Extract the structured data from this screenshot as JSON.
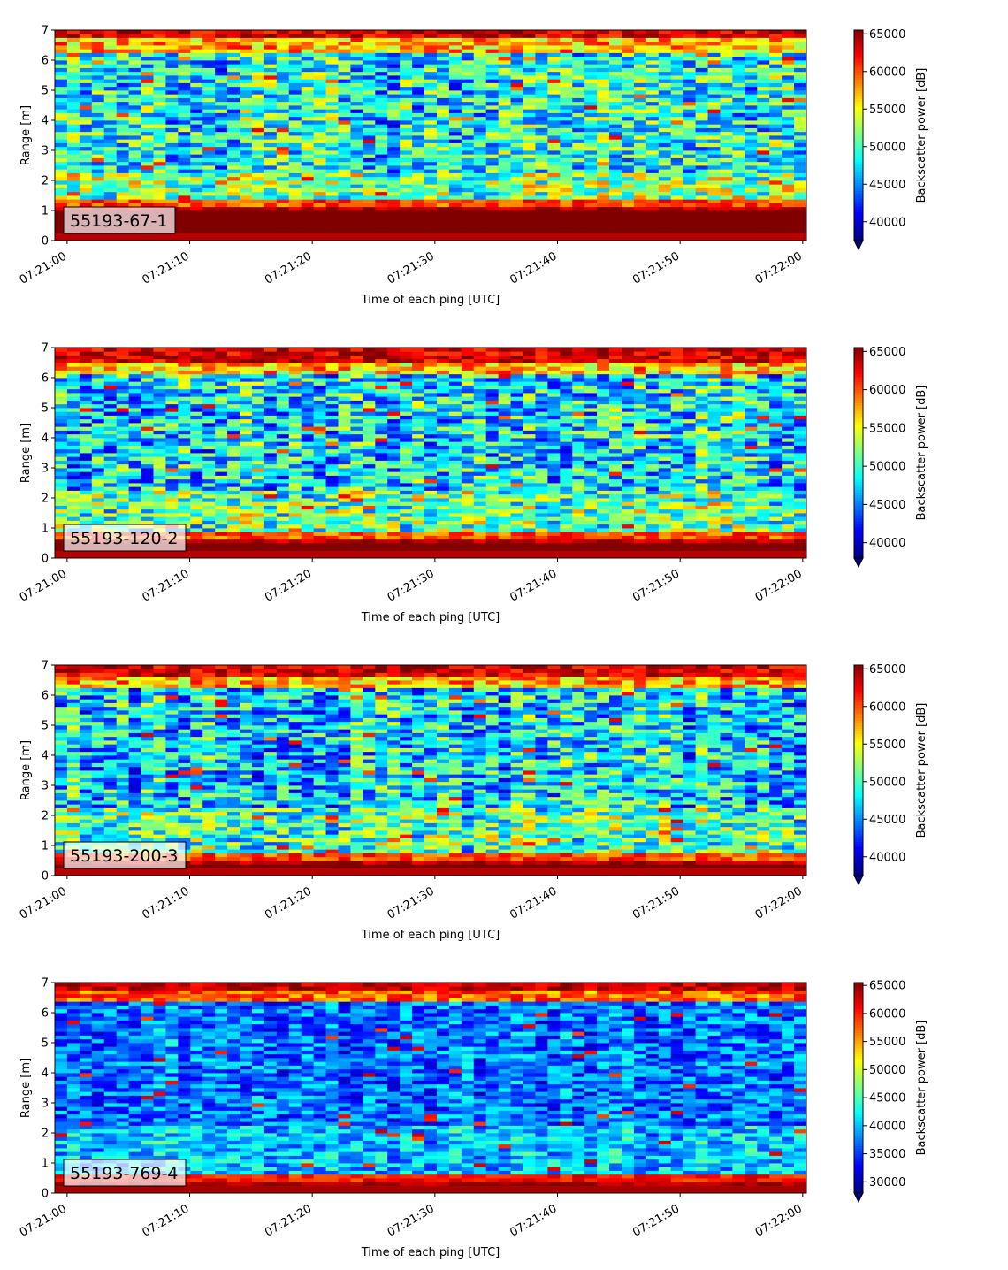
{
  "chart_data": [
    {
      "type": "heatmap",
      "panel_label": "55193-67-1",
      "xlabel": "Time of each ping [UTC]",
      "ylabel": "Range [m]",
      "colorbar_label": "Backscatter power [dB]",
      "x_ticks": [
        "07:21:00",
        "07:21:10",
        "07:21:20",
        "07:21:30",
        "07:21:40",
        "07:21:50",
        "07:22:00"
      ],
      "x_range_seconds": [
        -1,
        60.3
      ],
      "y_ticks": [
        0,
        1,
        2,
        3,
        4,
        5,
        6,
        7
      ],
      "ylim": [
        0,
        7
      ],
      "colorbar_ticks": [
        40000,
        45000,
        50000,
        55000,
        60000,
        65000
      ],
      "vlim": [
        37500,
        65500
      ],
      "colormap": "jet",
      "colorbar_extend": "min",
      "bottom_band_top_m": 1.1,
      "top_band_bottom_m": 6.6,
      "interior_mean": 48500,
      "interior_spread": 6500
    },
    {
      "type": "heatmap",
      "panel_label": "55193-120-2",
      "xlabel": "Time of each ping [UTC]",
      "ylabel": "Range [m]",
      "colorbar_label": "Backscatter power [dB]",
      "x_ticks": [
        "07:21:00",
        "07:21:10",
        "07:21:20",
        "07:21:30",
        "07:21:40",
        "07:21:50",
        "07:22:00"
      ],
      "x_range_seconds": [
        -1,
        60.3
      ],
      "y_ticks": [
        0,
        1,
        2,
        3,
        4,
        5,
        6,
        7
      ],
      "ylim": [
        0,
        7
      ],
      "colorbar_ticks": [
        40000,
        45000,
        50000,
        55000,
        60000,
        65000
      ],
      "vlim": [
        38000,
        65500
      ],
      "colormap": "jet",
      "colorbar_extend": "min",
      "bottom_band_top_m": 0.65,
      "top_band_bottom_m": 6.4,
      "interior_mean": 48000,
      "interior_spread": 6500
    },
    {
      "type": "heatmap",
      "panel_label": "55193-200-3",
      "xlabel": "Time of each ping [UTC]",
      "ylabel": "Range [m]",
      "colorbar_label": "Backscatter power [dB]",
      "x_ticks": [
        "07:21:00",
        "07:21:10",
        "07:21:20",
        "07:21:30",
        "07:21:40",
        "07:21:50",
        "07:22:00"
      ],
      "x_range_seconds": [
        -1,
        60.3
      ],
      "y_ticks": [
        0,
        1,
        2,
        3,
        4,
        5,
        6,
        7
      ],
      "ylim": [
        0,
        7
      ],
      "colorbar_ticks": [
        40000,
        45000,
        50000,
        55000,
        60000,
        65000
      ],
      "vlim": [
        37500,
        65500
      ],
      "colormap": "jet",
      "colorbar_extend": "min",
      "bottom_band_top_m": 0.5,
      "top_band_bottom_m": 6.5,
      "interior_mean": 47000,
      "interior_spread": 6500
    },
    {
      "type": "heatmap",
      "panel_label": "55193-769-4",
      "xlabel": "Time of each ping [UTC]",
      "ylabel": "Range [m]",
      "colorbar_label": "Backscatter power [dB]",
      "x_ticks": [
        "07:21:00",
        "07:21:10",
        "07:21:20",
        "07:21:30",
        "07:21:40",
        "07:21:50",
        "07:22:00"
      ],
      "x_range_seconds": [
        -1,
        60.3
      ],
      "y_ticks": [
        0,
        1,
        2,
        3,
        4,
        5,
        6,
        7
      ],
      "ylim": [
        0,
        7
      ],
      "colorbar_ticks": [
        30000,
        35000,
        40000,
        45000,
        50000,
        55000,
        60000,
        65000
      ],
      "vlim": [
        28000,
        65500
      ],
      "colormap": "jet",
      "colorbar_extend": "min",
      "bottom_band_top_m": 0.35,
      "top_band_bottom_m": 6.7,
      "interior_mean": 37000,
      "interior_spread": 5500
    }
  ]
}
